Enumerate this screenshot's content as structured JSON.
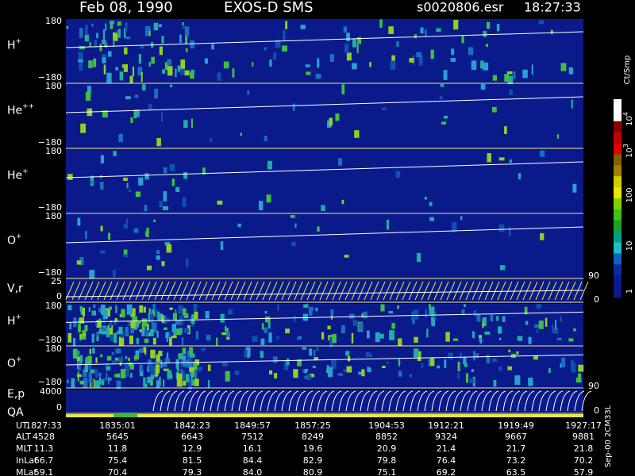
{
  "header": {
    "date": "Feb 08, 1990",
    "instrument": "EXOS-D SMS",
    "file": "s0020806.esr",
    "time": "18:27:33"
  },
  "panels": [
    {
      "label": "H",
      "sup": "+",
      "top": "180",
      "bottom": "−180"
    },
    {
      "label": "He",
      "sup": "++",
      "top": "180",
      "bottom": "−180"
    },
    {
      "label": "He",
      "sup": "+",
      "top": "180",
      "bottom": "−180"
    },
    {
      "label": "O",
      "sup": "+",
      "top": "180",
      "bottom": "−180"
    },
    {
      "label": "V,r",
      "top": "25",
      "bottom": "0",
      "right_top": "90",
      "right_bottom": "0"
    },
    {
      "label": "H",
      "sup": "+",
      "top": "180",
      "bottom": "−180"
    },
    {
      "label": "O",
      "sup": "+",
      "top": "180",
      "bottom": "−180"
    },
    {
      "label": "E,p",
      "top": "4000",
      "bottom": "0",
      "right_top": "90",
      "right_bottom": "0",
      "extra": "QA"
    }
  ],
  "colorbar": {
    "unit": "Ct/Smp",
    "labels": [
      {
        "base": "10",
        "sup": "4"
      },
      {
        "base": "10",
        "sup": "3"
      },
      {
        "base": "100"
      },
      {
        "base": "10"
      },
      {
        "base": "1"
      }
    ]
  },
  "table": {
    "row_labels": [
      "UT",
      "ALT",
      "MLT",
      "InLat",
      "MLat"
    ],
    "rows": [
      [
        "1827:33",
        "1835:01",
        "1842:23",
        "1849:57",
        "1857:25",
        "1904:53",
        "1912:21",
        "1919:49",
        "1927:17"
      ],
      [
        "4528",
        "5645",
        "6643",
        "7512",
        "8249",
        "8852",
        "9324",
        "9667",
        "9881"
      ],
      [
        "11.3",
        "11.8",
        "12.9",
        "16.1",
        "19.6",
        "20.9",
        "21.4",
        "21.7",
        "21.8"
      ],
      [
        "66.7",
        "75.4",
        "81.5",
        "84.4",
        "82.9",
        "79.8",
        "76.4",
        "73.2",
        "70.2"
      ],
      [
        "59.1",
        "70.4",
        "79.3",
        "84.0",
        "80.9",
        "75.1",
        "69.2",
        "63.5",
        "57.9"
      ]
    ]
  },
  "footer": "Sep-00  2CM33L"
}
